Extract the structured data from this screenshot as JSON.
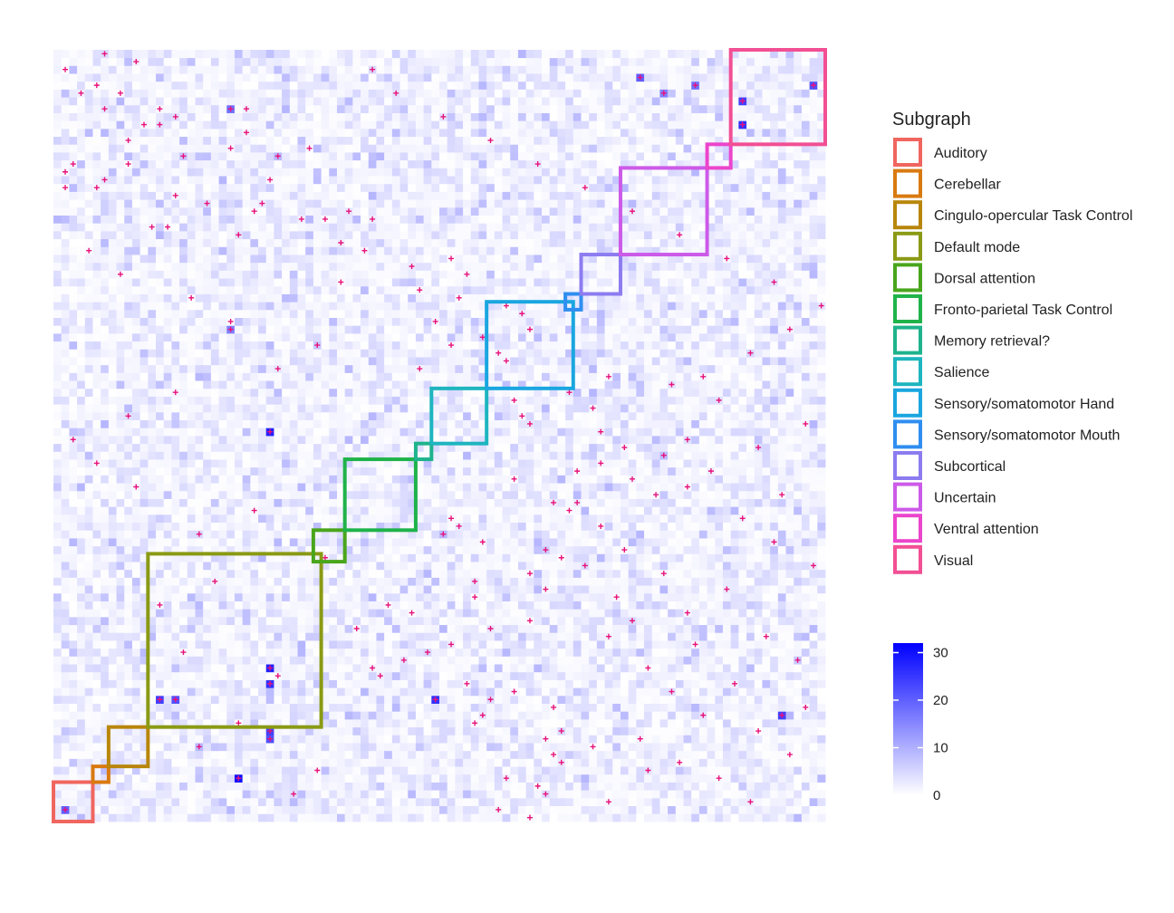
{
  "chart_data": {
    "type": "heatmap",
    "title": "",
    "xlabel": "",
    "ylabel": "",
    "matrix_size": 98,
    "background_color": "#ffffff",
    "colorbar": {
      "low_color": "#ffffff",
      "high_color": "#0000ff",
      "range": [
        0,
        32
      ],
      "ticks": [
        0,
        10,
        20,
        30
      ],
      "tick_labels": [
        "0",
        "10",
        "20",
        "30"
      ]
    },
    "mark_symbol": "+",
    "mark_color": "#e8127a",
    "legend": {
      "title": "Subgraph",
      "placement": "right",
      "entries": [
        {
          "label": "Auditory",
          "color": "#f0665f"
        },
        {
          "label": "Cerebellar",
          "color": "#d97a10"
        },
        {
          "label": "Cingulo-opercular Task Control",
          "color": "#b8860b"
        },
        {
          "label": "Default mode",
          "color": "#8a9a14"
        },
        {
          "label": "Dorsal attention",
          "color": "#4aa51c"
        },
        {
          "label": "Fronto-parietal Task Control",
          "color": "#1fb34a"
        },
        {
          "label": "Memory retrieval?",
          "color": "#1eb38c"
        },
        {
          "label": "Salience",
          "color": "#1eb5bf"
        },
        {
          "label": "Sensory/somatomotor Hand",
          "color": "#1aa6e0"
        },
        {
          "label": "Sensory/somatomotor Mouth",
          "color": "#2f8ef0"
        },
        {
          "label": "Subcortical",
          "color": "#8c7cf0"
        },
        {
          "label": "Uncertain",
          "color": "#cc5ae8"
        },
        {
          "label": "Ventral attention",
          "color": "#eb45cc"
        },
        {
          "label": "Visual",
          "color": "#f24f94"
        }
      ]
    },
    "blocks": [
      {
        "label": "Auditory",
        "start": 0,
        "end": 5
      },
      {
        "label": "Cerebellar",
        "start": 5,
        "end": 7
      },
      {
        "label": "Cingulo-opercular Task Control",
        "start": 7,
        "end": 12
      },
      {
        "label": "Default mode",
        "start": 12,
        "end": 34
      },
      {
        "label": "Dorsal attention",
        "start": 33,
        "end": 37
      },
      {
        "label": "Fronto-parietal Task Control",
        "start": 37,
        "end": 46
      },
      {
        "label": "Memory retrieval?",
        "start": 46,
        "end": 48
      },
      {
        "label": "Salience",
        "start": 48,
        "end": 55
      },
      {
        "label": "Sensory/somatomotor Hand",
        "start": 55,
        "end": 66
      },
      {
        "label": "Sensory/somatomotor Mouth",
        "start": 65,
        "end": 67
      },
      {
        "label": "Subcortical",
        "start": 67,
        "end": 72
      },
      {
        "label": "Uncertain",
        "start": 72,
        "end": 83
      },
      {
        "label": "Ventral attention",
        "start": 83,
        "end": 86
      },
      {
        "label": "Visual",
        "start": 86,
        "end": 98
      }
    ],
    "high_cells": [
      {
        "row": 5,
        "col": 23,
        "value": 30
      },
      {
        "row": 49,
        "col": 27,
        "value": 28
      },
      {
        "row": 15,
        "col": 48,
        "value": 26
      },
      {
        "row": 15,
        "col": 13,
        "value": 24
      },
      {
        "row": 15,
        "col": 15,
        "value": 22
      },
      {
        "row": 13,
        "col": 92,
        "value": 24
      },
      {
        "row": 17,
        "col": 27,
        "value": 26
      },
      {
        "row": 19,
        "col": 27,
        "value": 28
      },
      {
        "row": 11,
        "col": 27,
        "value": 24
      },
      {
        "row": 10,
        "col": 27,
        "value": 22
      },
      {
        "row": 88,
        "col": 87,
        "value": 26
      },
      {
        "row": 91,
        "col": 87,
        "value": 24
      },
      {
        "row": 93,
        "col": 96,
        "value": 22
      },
      {
        "row": 94,
        "col": 74,
        "value": 20
      },
      {
        "row": 93,
        "col": 81,
        "value": 18
      },
      {
        "row": 92,
        "col": 77,
        "value": 16
      },
      {
        "row": 90,
        "col": 22,
        "value": 18
      },
      {
        "row": 62,
        "col": 22,
        "value": 16
      },
      {
        "row": 1,
        "col": 1,
        "value": 20
      }
    ],
    "marked_cells": [
      [
        97,
        6
      ],
      [
        95,
        1
      ],
      [
        92,
        3
      ],
      [
        92,
        8
      ],
      [
        90,
        6
      ],
      [
        90,
        13
      ],
      [
        90,
        24
      ],
      [
        89,
        15
      ],
      [
        88,
        13
      ],
      [
        88,
        11
      ],
      [
        86,
        9
      ],
      [
        85,
        22
      ],
      [
        85,
        32
      ],
      [
        84,
        28
      ],
      [
        83,
        2
      ],
      [
        83,
        9
      ],
      [
        82,
        1
      ],
      [
        81,
        6
      ],
      [
        80,
        1
      ],
      [
        80,
        5
      ],
      [
        79,
        15
      ],
      [
        78,
        26
      ],
      [
        77,
        25
      ],
      [
        77,
        37
      ],
      [
        76,
        31
      ],
      [
        76,
        34
      ],
      [
        76,
        40
      ],
      [
        75,
        14
      ],
      [
        74,
        23
      ],
      [
        73,
        36
      ],
      [
        72,
        39
      ],
      [
        71,
        50
      ],
      [
        70,
        45
      ],
      [
        69,
        52
      ],
      [
        68,
        36
      ],
      [
        67,
        46
      ],
      [
        66,
        51
      ],
      [
        65,
        57
      ],
      [
        64,
        59
      ],
      [
        63,
        48
      ],
      [
        62,
        60
      ],
      [
        61,
        54
      ],
      [
        60,
        50
      ],
      [
        59,
        56
      ],
      [
        58,
        57
      ],
      [
        57,
        46
      ],
      [
        56,
        70
      ],
      [
        55,
        78
      ],
      [
        54,
        65
      ],
      [
        53,
        58
      ],
      [
        52,
        68
      ],
      [
        51,
        59
      ],
      [
        50,
        60
      ],
      [
        49,
        69
      ],
      [
        48,
        80
      ],
      [
        47,
        72
      ],
      [
        46,
        77
      ],
      [
        45,
        69
      ],
      [
        44,
        66
      ],
      [
        43,
        58
      ],
      [
        42,
        80
      ],
      [
        41,
        76
      ],
      [
        40,
        63
      ],
      [
        39,
        65
      ],
      [
        38,
        50
      ],
      [
        37,
        51
      ],
      [
        36,
        49
      ],
      [
        35,
        54
      ],
      [
        34,
        62
      ],
      [
        33,
        64
      ],
      [
        32,
        67
      ],
      [
        31,
        60
      ],
      [
        30,
        53
      ],
      [
        29,
        62
      ],
      [
        28,
        53
      ],
      [
        27,
        42
      ],
      [
        26,
        45
      ],
      [
        25,
        60
      ],
      [
        24,
        55
      ],
      [
        23,
        70
      ],
      [
        22,
        50
      ],
      [
        21,
        47
      ],
      [
        20,
        44
      ],
      [
        19,
        40
      ],
      [
        18,
        41
      ],
      [
        17,
        52
      ],
      [
        16,
        58
      ],
      [
        15,
        55
      ],
      [
        14,
        63
      ],
      [
        13,
        54
      ],
      [
        12,
        53
      ],
      [
        11,
        64
      ],
      [
        10,
        62
      ],
      [
        9,
        68
      ],
      [
        8,
        63
      ],
      [
        7,
        64
      ],
      [
        6,
        75
      ],
      [
        5,
        57
      ],
      [
        4,
        61
      ],
      [
        3,
        62
      ],
      [
        2,
        70
      ],
      [
        1,
        56
      ],
      [
        0,
        60
      ],
      [
        3,
        30
      ],
      [
        6,
        33
      ],
      [
        9,
        18
      ],
      [
        12,
        23
      ],
      [
        18,
        28
      ],
      [
        21,
        16
      ],
      [
        24,
        38
      ],
      [
        27,
        13
      ],
      [
        30,
        20
      ],
      [
        33,
        34
      ],
      [
        36,
        18
      ],
      [
        39,
        25
      ],
      [
        42,
        10
      ],
      [
        45,
        5
      ],
      [
        48,
        2
      ],
      [
        51,
        9
      ],
      [
        54,
        15
      ],
      [
        57,
        28
      ],
      [
        60,
        33
      ],
      [
        63,
        22
      ],
      [
        66,
        17
      ],
      [
        69,
        8
      ],
      [
        72,
        4
      ],
      [
        75,
        12
      ],
      [
        78,
        19
      ],
      [
        81,
        27
      ],
      [
        84,
        16
      ],
      [
        87,
        24
      ],
      [
        93,
        5
      ],
      [
        96,
        10
      ],
      [
        95,
        40
      ],
      [
        92,
        43
      ],
      [
        89,
        49
      ],
      [
        86,
        55
      ],
      [
        83,
        61
      ],
      [
        80,
        67
      ],
      [
        77,
        73
      ],
      [
        74,
        79
      ],
      [
        71,
        85
      ],
      [
        68,
        91
      ],
      [
        65,
        97
      ],
      [
        62,
        93
      ],
      [
        59,
        88
      ],
      [
        56,
        82
      ],
      [
        53,
        84
      ],
      [
        50,
        95
      ],
      [
        47,
        89
      ],
      [
        44,
        83
      ],
      [
        41,
        92
      ],
      [
        38,
        87
      ],
      [
        35,
        91
      ],
      [
        32,
        96
      ],
      [
        29,
        85
      ],
      [
        26,
        80
      ],
      [
        23,
        90
      ],
      [
        20,
        94
      ],
      [
        17,
        86
      ],
      [
        14,
        95
      ],
      [
        11,
        89
      ],
      [
        8,
        93
      ],
      [
        5,
        84
      ],
      [
        2,
        88
      ],
      [
        7,
        79
      ],
      [
        10,
        74
      ],
      [
        13,
        82
      ],
      [
        16,
        78
      ],
      [
        19,
        75
      ],
      [
        22,
        81
      ],
      [
        25,
        73
      ],
      [
        28,
        71
      ],
      [
        31,
        77
      ],
      [
        34,
        72
      ],
      [
        37,
        69
      ],
      [
        40,
        66
      ],
      [
        43,
        73
      ]
    ]
  }
}
